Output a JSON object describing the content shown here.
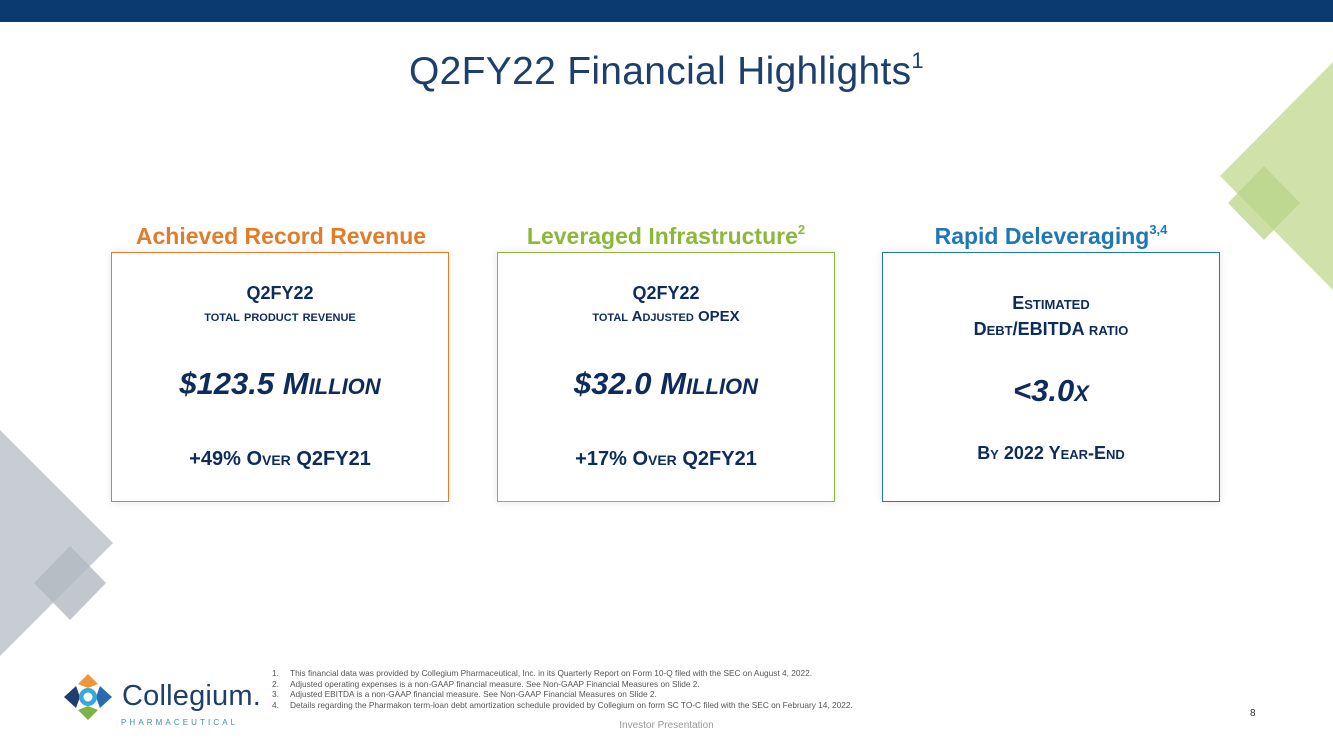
{
  "title": "Q2FY22 Financial Highlights",
  "title_sup": "1",
  "cards": [
    {
      "heading": "Achieved Record Revenue",
      "heading_sup": "",
      "color": "#e37c28",
      "line1": "Q2FY22",
      "line2": "total product revenue",
      "big_prefix": "$123.5 ",
      "big_suffix": "Million",
      "bottom_prefix": "+49% ",
      "bottom_suffix": "Over Q2FY21"
    },
    {
      "heading": "Leveraged Infrastructure",
      "heading_sup": "2",
      "color": "#8cb83a",
      "line1": "Q2FY22",
      "line2": "total Adjusted OPEX",
      "big_prefix": "$32.0 ",
      "big_suffix": "Million",
      "bottom_prefix": "+17% ",
      "bottom_suffix": "Over Q2FY21"
    },
    {
      "heading": "Rapid Deleveraging",
      "heading_sup": "3,4",
      "color": "#1e78b8",
      "line1": "Estimated",
      "line2": "Debt/EBITDA ratio",
      "big_prefix": "<3.0",
      "big_suffix": "x",
      "bottom_prefix": "",
      "bottom_suffix": "By 2022 Year-End"
    }
  ],
  "footnotes": [
    {
      "num": "1.",
      "text": "This financial data was provided by Collegium Pharmaceutical, Inc. in its Quarterly Report on Form 10-Q filed with the SEC on August 4, 2022."
    },
    {
      "num": "2.",
      "text": "Adjusted operating expenses is a non-GAAP financial measure. See Non-GAAP Financial Measures on Slide 2."
    },
    {
      "num": "3.",
      "text": "Adjusted EBITDA is a non-GAAP financial measure. See Non-GAAP Financial Measures on Slide 2."
    },
    {
      "num": "4.",
      "text": "Details regarding the Pharmakon term-loan debt amortization schedule provided by Collegium on form SC TO-C filed with the SEC on February 14, 2022."
    }
  ],
  "footer_center": "Investor Presentation",
  "page_number": "8",
  "logo": {
    "name": "Collegium.",
    "tagline": "PHARMACEUTICAL"
  },
  "colors": {
    "top_bar": "#0b3a70",
    "title": "#1d3f6e",
    "card_text": "#0d2c5c",
    "deco_green": "#c7dc9e",
    "deco_gray": "#c9ced3"
  }
}
